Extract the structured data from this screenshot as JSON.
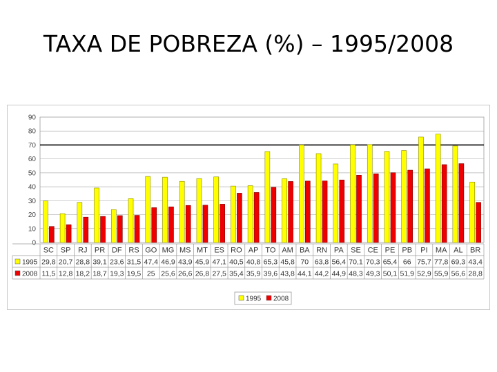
{
  "title": "TAXA DE POBREZA (%) – 1995/2008",
  "chart_data": {
    "type": "bar",
    "categories": [
      "SC",
      "SP",
      "RJ",
      "PR",
      "DF",
      "RS",
      "GO",
      "MG",
      "MS",
      "MT",
      "ES",
      "RO",
      "AP",
      "TO",
      "AM",
      "BA",
      "RN",
      "PA",
      "SE",
      "CE",
      "PE",
      "PB",
      "PI",
      "MA",
      "AL",
      "BR"
    ],
    "series": [
      {
        "name": "1995",
        "color": "#ffff00",
        "values": [
          29.8,
          20.7,
          28.8,
          39.1,
          23.6,
          31.5,
          47.4,
          46.9,
          43.9,
          45.9,
          47.1,
          40.5,
          40.8,
          65.3,
          45.8,
          70,
          63.8,
          56.4,
          70.1,
          70.3,
          65.4,
          66,
          75.7,
          77.8,
          69.3,
          43.4
        ],
        "labels": [
          "29,8",
          "20,7",
          "28,8",
          "39,1",
          "23,6",
          "31,5",
          "47,4",
          "46,9",
          "43,9",
          "45,9",
          "47,1",
          "40,5",
          "40,8",
          "65,3",
          "45,8",
          "70",
          "63,8",
          "56,4",
          "70,1",
          "70,3",
          "65,4",
          "66",
          "75,7",
          "77,8",
          "69,3",
          "43,4"
        ]
      },
      {
        "name": "2008",
        "color": "#ee0000",
        "values": [
          11.5,
          12.8,
          18.2,
          18.7,
          19.3,
          19.5,
          25,
          25.6,
          26.6,
          26.8,
          27.5,
          35.4,
          35.9,
          39.6,
          43.8,
          44.1,
          44.2,
          44.9,
          48.3,
          49.3,
          50.1,
          51.9,
          52.9,
          55.9,
          56.6,
          28.8
        ],
        "labels": [
          "11,5",
          "12,8",
          "18,2",
          "18,7",
          "19,3",
          "19,5",
          "25",
          "25,6",
          "26,6",
          "26,8",
          "27,5",
          "35,4",
          "35,9",
          "39,6",
          "43,8",
          "44,1",
          "44,2",
          "44,9",
          "48,3",
          "49,3",
          "50,1",
          "51,9",
          "52,9",
          "55,9",
          "56,6",
          "28,8"
        ]
      }
    ],
    "yticks": [
      "0",
      "10",
      "20",
      "30",
      "40",
      "50",
      "60",
      "70",
      "80",
      "90"
    ],
    "ylim": [
      0,
      90
    ],
    "reference_line": 70,
    "grid": true,
    "legend_position": "bottom",
    "data_table": true
  }
}
